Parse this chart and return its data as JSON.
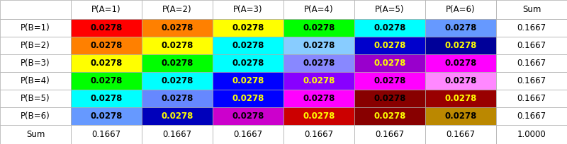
{
  "col_labels": [
    "",
    "P(A=1)",
    "P(A=2)",
    "P(A=3)",
    "P(A=4)",
    "P(A=5)",
    "P(A=6)",
    "Sum"
  ],
  "row_labels": [
    "P(B=1)",
    "P(B=2)",
    "P(B=3)",
    "P(B=4)",
    "P(B=5)",
    "P(B=6)",
    "Sum"
  ],
  "cell_values": [
    [
      "0.0278",
      "0.0278",
      "0.0278",
      "0.0278",
      "0.0278",
      "0.0278",
      "0.1667"
    ],
    [
      "0.0278",
      "0.0278",
      "0.0278",
      "0.0278",
      "0.0278",
      "0.0278",
      "0.1667"
    ],
    [
      "0.0278",
      "0.0278",
      "0.0278",
      "0.0278",
      "0.0278",
      "0.0278",
      "0.1667"
    ],
    [
      "0.0278",
      "0.0278",
      "0.0278",
      "0.0278",
      "0.0278",
      "0.0278",
      "0.1667"
    ],
    [
      "0.0278",
      "0.0278",
      "0.0278",
      "0.0278",
      "0.0278",
      "0.0278",
      "0.1667"
    ],
    [
      "0.0278",
      "0.0278",
      "0.0278",
      "0.0278",
      "0.0278",
      "0.0278",
      "0.1667"
    ],
    [
      "0.1667",
      "0.1667",
      "0.1667",
      "0.1667",
      "0.1667",
      "0.1667",
      "1.0000"
    ]
  ],
  "cell_colors": [
    [
      "#FF0000",
      "#FF8000",
      "#FFFF00",
      "#00FF00",
      "#00FFFF",
      "#6699FF",
      null
    ],
    [
      "#FF8000",
      "#FFFF00",
      "#00FFFF",
      "#88CCFF",
      "#0000CC",
      "#000099",
      null
    ],
    [
      "#FFFF00",
      "#00FF00",
      "#00FFFF",
      "#8888FF",
      "#9900CC",
      "#FF00FF",
      null
    ],
    [
      "#00FF00",
      "#00FFFF",
      "#0000FF",
      "#8800FF",
      "#FF00FF",
      "#FF88FF",
      null
    ],
    [
      "#00FFFF",
      "#6688FF",
      "#0000FF",
      "#FF00FF",
      "#880000",
      "#990000",
      null
    ],
    [
      "#6699FF",
      "#0000BB",
      "#CC00CC",
      "#CC0000",
      "#880000",
      "#BB8800",
      null
    ],
    [
      null,
      null,
      null,
      null,
      null,
      null,
      null
    ]
  ],
  "text_colors": [
    [
      "#000000",
      "#000000",
      "#000000",
      "#000000",
      "#000000",
      "#000000",
      "#000000"
    ],
    [
      "#000000",
      "#000000",
      "#000000",
      "#000000",
      "#FFFF00",
      "#FFFF00",
      "#000000"
    ],
    [
      "#000000",
      "#000000",
      "#000000",
      "#000000",
      "#FFFF00",
      "#000000",
      "#000000"
    ],
    [
      "#000000",
      "#000000",
      "#FFFF00",
      "#FFFF00",
      "#000000",
      "#000000",
      "#000000"
    ],
    [
      "#000000",
      "#000000",
      "#FFFF00",
      "#000000",
      "#000000",
      "#FFFF00",
      "#000000"
    ],
    [
      "#000000",
      "#FFFF00",
      "#000000",
      "#FFFF00",
      "#FFFF00",
      "#000000",
      "#000000"
    ],
    [
      "#000000",
      "#000000",
      "#000000",
      "#000000",
      "#000000",
      "#000000",
      "#000000"
    ]
  ],
  "bg_color": "#FFFFFF",
  "grid_color": "#AAAAAA",
  "font_size": 8.5,
  "fig_width": 8.0,
  "fig_height": 2.04
}
